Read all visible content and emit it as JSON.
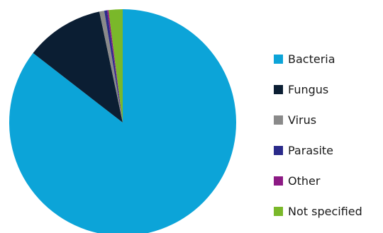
{
  "chart_data": {
    "type": "pie",
    "title": "",
    "categories": [
      "Bacteria",
      "Fungus",
      "Virus",
      "Parasite",
      "Other",
      "Not specified"
    ],
    "values": [
      85.5,
      11.2,
      0.7,
      0.4,
      0.2,
      2.0
    ],
    "unit": "%",
    "colors": [
      "#0ca4d8",
      "#0b1e33",
      "#8a8a8a",
      "#2a2a8a",
      "#8c1a84",
      "#7ab82a"
    ],
    "legend_position": "right",
    "start_angle_deg": 0,
    "direction": "clockwise",
    "grid": false
  }
}
